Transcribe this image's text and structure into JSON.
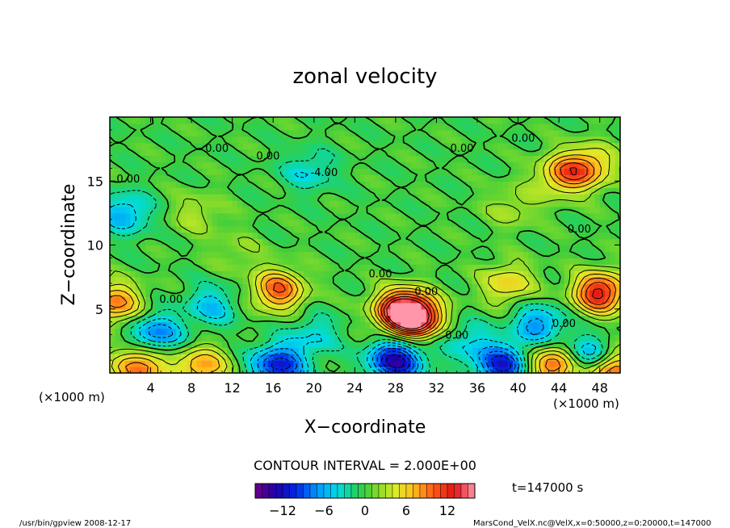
{
  "chart_data": {
    "type": "heatmap",
    "title": "zonal velocity",
    "xlabel": "X−coordinate",
    "ylabel": "Z−coordinate",
    "x_unit": "(×1000 m)",
    "z_unit": "(×1000 m)",
    "x_ticks": [
      4,
      8,
      12,
      16,
      20,
      24,
      28,
      32,
      36,
      40,
      44,
      48
    ],
    "z_ticks": [
      5,
      10,
      15
    ],
    "xlim": [
      0,
      50
    ],
    "zlim": [
      0,
      20
    ],
    "contour_interval_label": "CONTOUR INTERVAL = 2.000E+00",
    "contour_interval": 2.0,
    "contour_labels": [
      "0.00",
      "0.00",
      "0.00",
      "0.00",
      "-4.00",
      "0.00",
      "0.00",
      "0.00",
      "0.00",
      "0.00",
      "0.00",
      "0.00"
    ],
    "colorbar": {
      "range": [
        -16,
        16
      ],
      "ticks": [
        "−12",
        "−6",
        "0",
        "6",
        "12"
      ]
    },
    "time_label": "t=147000  s",
    "footer_left": "/usr/bin/gpview   2008-12-17",
    "footer_right": "MarsCond_VelX.nc@VelX,x=0:50000,z=0:20000,t=147000",
    "features": [
      {
        "x": 16.5,
        "z": 6.5,
        "value": 10
      },
      {
        "x": 28.5,
        "z": 5.0,
        "value": 13
      },
      {
        "x": 30.0,
        "z": 4.3,
        "value": 14
      },
      {
        "x": 48.0,
        "z": 6.3,
        "value": 13
      },
      {
        "x": 39.0,
        "z": 7.0,
        "value": 6
      },
      {
        "x": 0.5,
        "z": 5.5,
        "value": 9
      },
      {
        "x": 3.0,
        "z": 0.6,
        "value": 10
      },
      {
        "x": 9.0,
        "z": 0.5,
        "value": 8
      },
      {
        "x": 43.5,
        "z": 0.6,
        "value": 11
      },
      {
        "x": 49.0,
        "z": 0.3,
        "value": 12
      },
      {
        "x": 16.5,
        "z": 0.6,
        "value": -11
      },
      {
        "x": 28.0,
        "z": 1.0,
        "value": -13
      },
      {
        "x": 38.5,
        "z": 0.6,
        "value": -11
      },
      {
        "x": 47.0,
        "z": 1.2,
        "value": -9
      },
      {
        "x": 4.5,
        "z": 3.0,
        "value": -8
      },
      {
        "x": 42.0,
        "z": 3.8,
        "value": -7
      },
      {
        "x": 10.0,
        "z": 5.3,
        "value": -5
      },
      {
        "x": 20.0,
        "z": 3.0,
        "value": -4
      },
      {
        "x": 35.0,
        "z": 2.5,
        "value": -4
      },
      {
        "x": 1.5,
        "z": 12.5,
        "value": -6
      },
      {
        "x": 19.5,
        "z": 15.8,
        "value": -4
      },
      {
        "x": 44.5,
        "z": 15.5,
        "value": 8
      },
      {
        "x": 47.0,
        "z": 16.2,
        "value": 7
      },
      {
        "x": 8.5,
        "z": 12.5,
        "value": 3
      },
      {
        "x": 12.5,
        "z": 9.5,
        "value": 2
      },
      {
        "x": 39.5,
        "z": 13.0,
        "value": 3
      }
    ]
  }
}
